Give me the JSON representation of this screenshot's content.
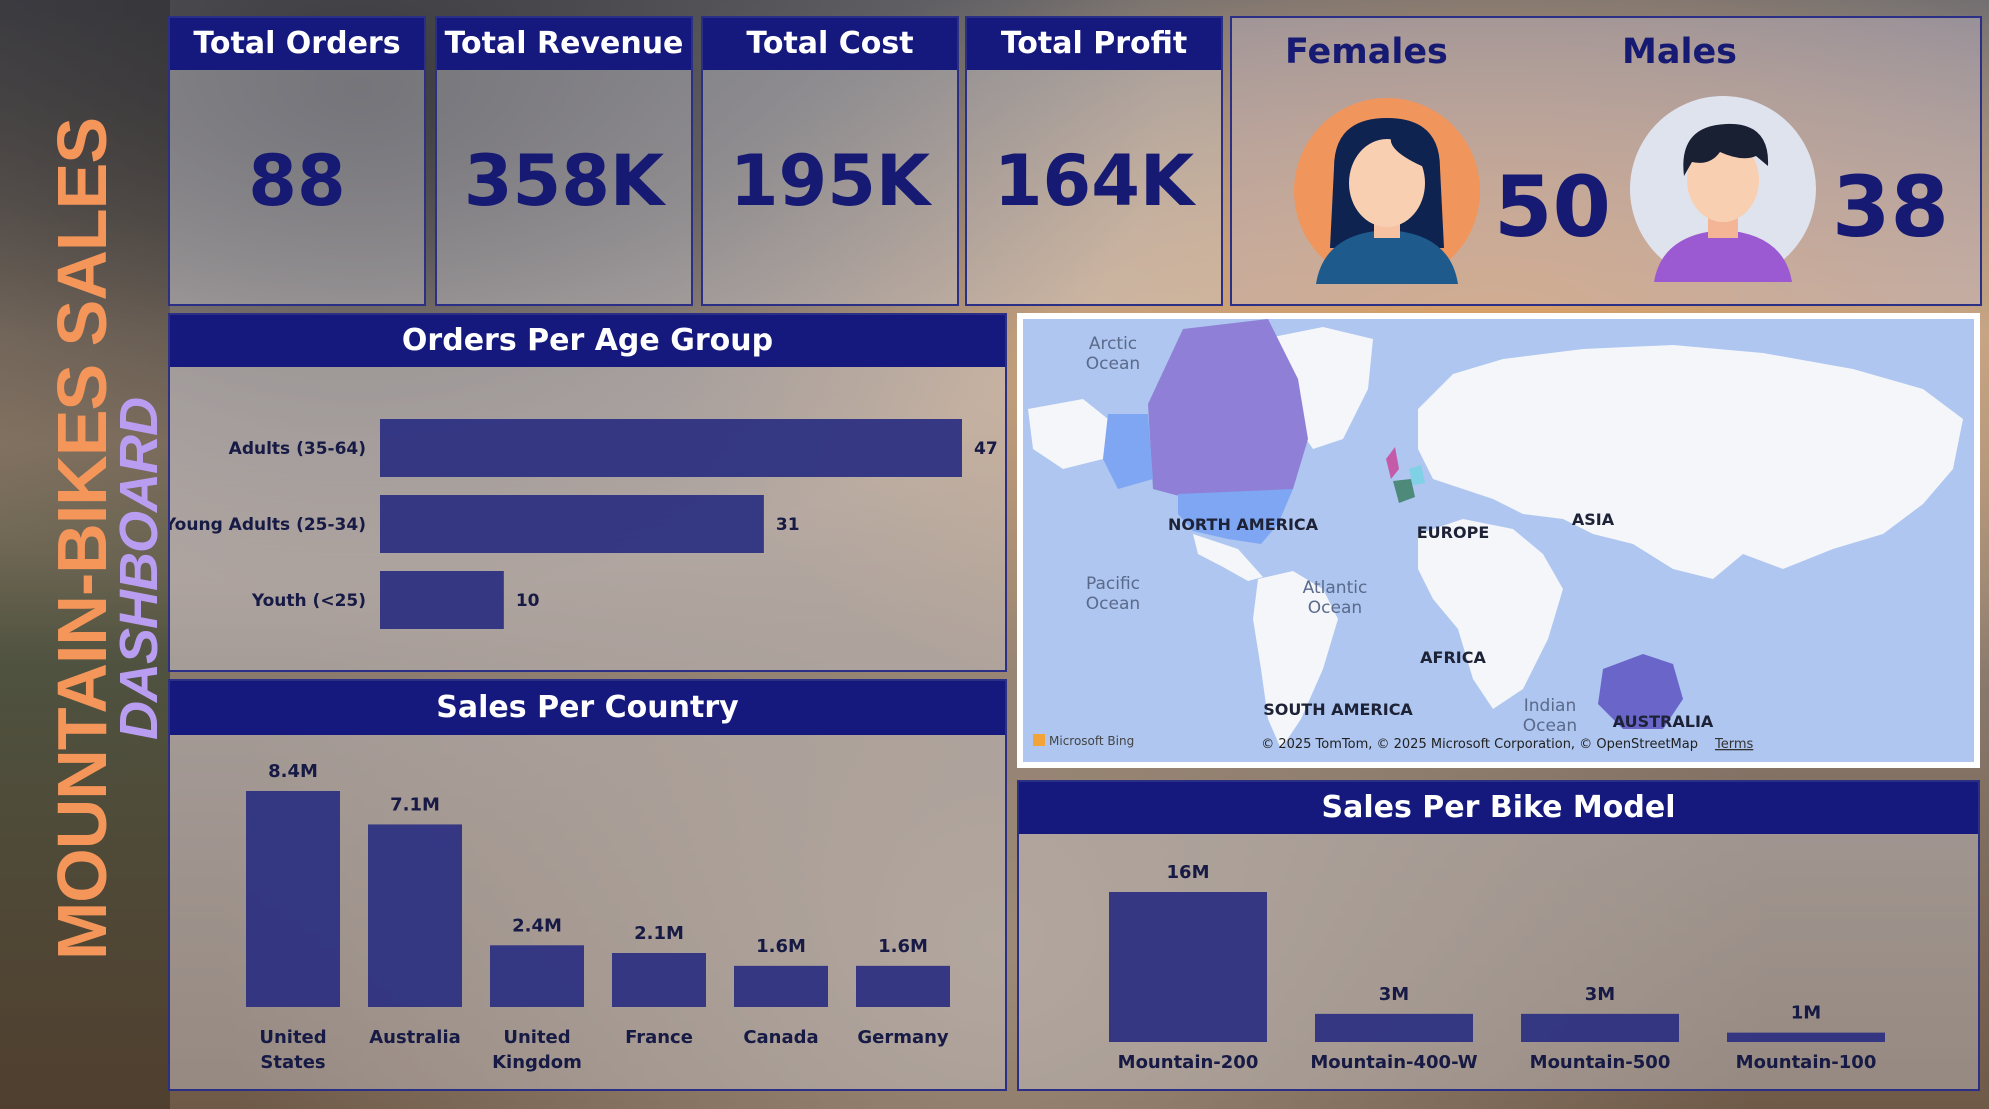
{
  "side_title": {
    "line1": "MOUNTAIN-BIKES SALES",
    "line2": "DASHBOARD"
  },
  "kpis": [
    {
      "label": "Total Orders",
      "value": "88"
    },
    {
      "label": "Total Revenue",
      "value": "358K"
    },
    {
      "label": "Total Cost",
      "value": "195K"
    },
    {
      "label": "Total Profit",
      "value": "164K"
    }
  ],
  "gender": {
    "females_label": "Females",
    "females_value": "50",
    "males_label": "Males",
    "males_value": "38"
  },
  "map": {
    "labels": {
      "arctic": "Arctic Ocean",
      "pacific": "Pacific Ocean",
      "atlantic": "Atlantic Ocean",
      "indian": "Indian Ocean",
      "north_america": "NORTH AMERICA",
      "south_america": "SOUTH AMERICA",
      "europe": "EUROPE",
      "asia": "ASIA",
      "africa": "AFRICA",
      "australia": "AUSTRALIA"
    },
    "brand": "Microsoft Bing",
    "copyright": "© 2025 TomTom, © 2025 Microsoft Corporation, © OpenStreetMap",
    "terms": "Terms",
    "colors": {
      "water": "#aec6f0",
      "land": "#f4f6fa",
      "canada": "#8f7fd6",
      "usa": "#7ea6f2",
      "australia": "#6a66c9"
    }
  },
  "chart_data": [
    {
      "id": "age",
      "type": "bar",
      "orientation": "horizontal",
      "title": "Orders Per Age Group",
      "categories": [
        "Adults (35-64)",
        "Young Adults (25-34)",
        "Youth (<25)"
      ],
      "values": [
        47,
        31,
        10
      ],
      "labels": [
        "47",
        "31",
        "10"
      ],
      "xlim": [
        0,
        47
      ],
      "color": "#2e3182"
    },
    {
      "id": "country",
      "type": "bar",
      "title": "Sales Per Country",
      "categories": [
        "United States",
        "Australia",
        "United Kingdom",
        "France",
        "Canada",
        "Germany"
      ],
      "values": [
        8.4,
        7.1,
        2.4,
        2.1,
        1.6,
        1.6
      ],
      "labels": [
        "8.4M",
        "7.1M",
        "2.4M",
        "2.1M",
        "1.6M",
        "1.6M"
      ],
      "ylim": [
        0,
        8.4
      ],
      "color": "#2e3182"
    },
    {
      "id": "model",
      "type": "bar",
      "title": "Sales Per Bike Model",
      "categories": [
        "Mountain-200",
        "Mountain-400-W",
        "Mountain-500",
        "Mountain-100"
      ],
      "values": [
        16,
        3,
        3,
        1
      ],
      "labels": [
        "16M",
        "3M",
        "3M",
        "1M"
      ],
      "ylim": [
        0,
        16
      ],
      "color": "#2e3182"
    }
  ]
}
